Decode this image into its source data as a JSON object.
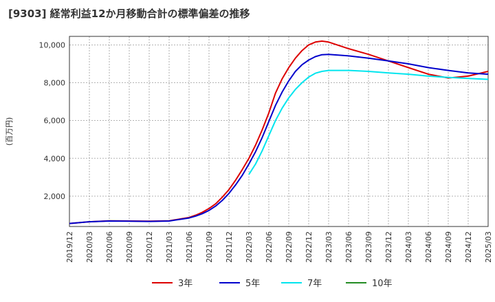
{
  "chart_data": {
    "type": "line",
    "title": "[9303]  経常利益12か月移動合計の標準偏差の推移",
    "ylabel": "(百万円)",
    "xlabel": "",
    "ylim": [
      400,
      10450
    ],
    "xlim": [
      "2019-12",
      "2025-03"
    ],
    "yticks": [
      2000,
      4000,
      6000,
      8000,
      10000
    ],
    "ytick_labels": [
      "2,000",
      "4,000",
      "6,000",
      "8,000",
      "10,000"
    ],
    "xtick_labels": [
      "2019/12",
      "2020/03",
      "2020/06",
      "2020/09",
      "2020/12",
      "2021/03",
      "2021/06",
      "2021/09",
      "2021/12",
      "2022/03",
      "2022/06",
      "2022/09",
      "2022/12",
      "2023/03",
      "2023/06",
      "2023/09",
      "2023/12",
      "2024/03",
      "2024/06",
      "2024/09",
      "2024/12",
      "2025/03"
    ],
    "grid": true,
    "legend_position": "bottom",
    "series": [
      {
        "name": "3年",
        "color": "#dd0000",
        "points": [
          [
            "2019-12",
            560
          ],
          [
            "2020-03",
            650
          ],
          [
            "2020-06",
            700
          ],
          [
            "2020-09",
            690
          ],
          [
            "2020-12",
            680
          ],
          [
            "2021-03",
            700
          ],
          [
            "2021-06",
            880
          ],
          [
            "2021-07",
            1000
          ],
          [
            "2021-08",
            1150
          ],
          [
            "2021-09",
            1350
          ],
          [
            "2021-10",
            1600
          ],
          [
            "2021-11",
            1950
          ],
          [
            "2021-12",
            2350
          ],
          [
            "2022-01",
            2850
          ],
          [
            "2022-02",
            3400
          ],
          [
            "2022-03",
            4000
          ],
          [
            "2022-04",
            4700
          ],
          [
            "2022-05",
            5500
          ],
          [
            "2022-06",
            6400
          ],
          [
            "2022-07",
            7450
          ],
          [
            "2022-08",
            8200
          ],
          [
            "2022-09",
            8800
          ],
          [
            "2022-10",
            9300
          ],
          [
            "2022-11",
            9700
          ],
          [
            "2022-12",
            10000
          ],
          [
            "2023-01",
            10150
          ],
          [
            "2023-02",
            10200
          ],
          [
            "2023-03",
            10150
          ],
          [
            "2023-06",
            9800
          ],
          [
            "2023-09",
            9500
          ],
          [
            "2023-12",
            9150
          ],
          [
            "2024-03",
            8800
          ],
          [
            "2024-06",
            8450
          ],
          [
            "2024-09",
            8250
          ],
          [
            "2024-12",
            8350
          ],
          [
            "2025-03",
            8600
          ]
        ]
      },
      {
        "name": "5年",
        "color": "#0000cc",
        "points": [
          [
            "2019-12",
            560
          ],
          [
            "2020-03",
            650
          ],
          [
            "2020-06",
            690
          ],
          [
            "2020-09",
            680
          ],
          [
            "2020-12",
            670
          ],
          [
            "2021-03",
            690
          ],
          [
            "2021-06",
            850
          ],
          [
            "2021-07",
            950
          ],
          [
            "2021-08",
            1080
          ],
          [
            "2021-09",
            1250
          ],
          [
            "2021-10",
            1480
          ],
          [
            "2021-11",
            1780
          ],
          [
            "2021-12",
            2150
          ],
          [
            "2022-01",
            2600
          ],
          [
            "2022-02",
            3100
          ],
          [
            "2022-03",
            3700
          ],
          [
            "2022-04",
            4350
          ],
          [
            "2022-05",
            5100
          ],
          [
            "2022-06",
            5950
          ],
          [
            "2022-07",
            6800
          ],
          [
            "2022-08",
            7500
          ],
          [
            "2022-09",
            8100
          ],
          [
            "2022-10",
            8600
          ],
          [
            "2022-11",
            8950
          ],
          [
            "2022-12",
            9200
          ],
          [
            "2023-01",
            9380
          ],
          [
            "2023-02",
            9480
          ],
          [
            "2023-03",
            9500
          ],
          [
            "2023-06",
            9420
          ],
          [
            "2023-09",
            9300
          ],
          [
            "2023-12",
            9150
          ],
          [
            "2024-03",
            9000
          ],
          [
            "2024-06",
            8800
          ],
          [
            "2024-09",
            8650
          ],
          [
            "2024-12",
            8520
          ],
          [
            "2025-03",
            8450
          ]
        ]
      },
      {
        "name": "7年",
        "color": "#00e5ee",
        "points": [
          [
            "2022-03",
            3150
          ],
          [
            "2022-04",
            3700
          ],
          [
            "2022-05",
            4400
          ],
          [
            "2022-06",
            5200
          ],
          [
            "2022-07",
            6000
          ],
          [
            "2022-08",
            6650
          ],
          [
            "2022-09",
            7200
          ],
          [
            "2022-10",
            7650
          ],
          [
            "2022-11",
            8000
          ],
          [
            "2022-12",
            8300
          ],
          [
            "2023-01",
            8500
          ],
          [
            "2023-02",
            8600
          ],
          [
            "2023-03",
            8650
          ],
          [
            "2023-06",
            8650
          ],
          [
            "2023-09",
            8600
          ],
          [
            "2023-12",
            8520
          ],
          [
            "2024-03",
            8450
          ],
          [
            "2024-06",
            8350
          ],
          [
            "2024-09",
            8280
          ],
          [
            "2024-12",
            8230
          ],
          [
            "2025-03",
            8180
          ]
        ]
      },
      {
        "name": "10年",
        "color": "#228b22",
        "points": []
      }
    ]
  }
}
